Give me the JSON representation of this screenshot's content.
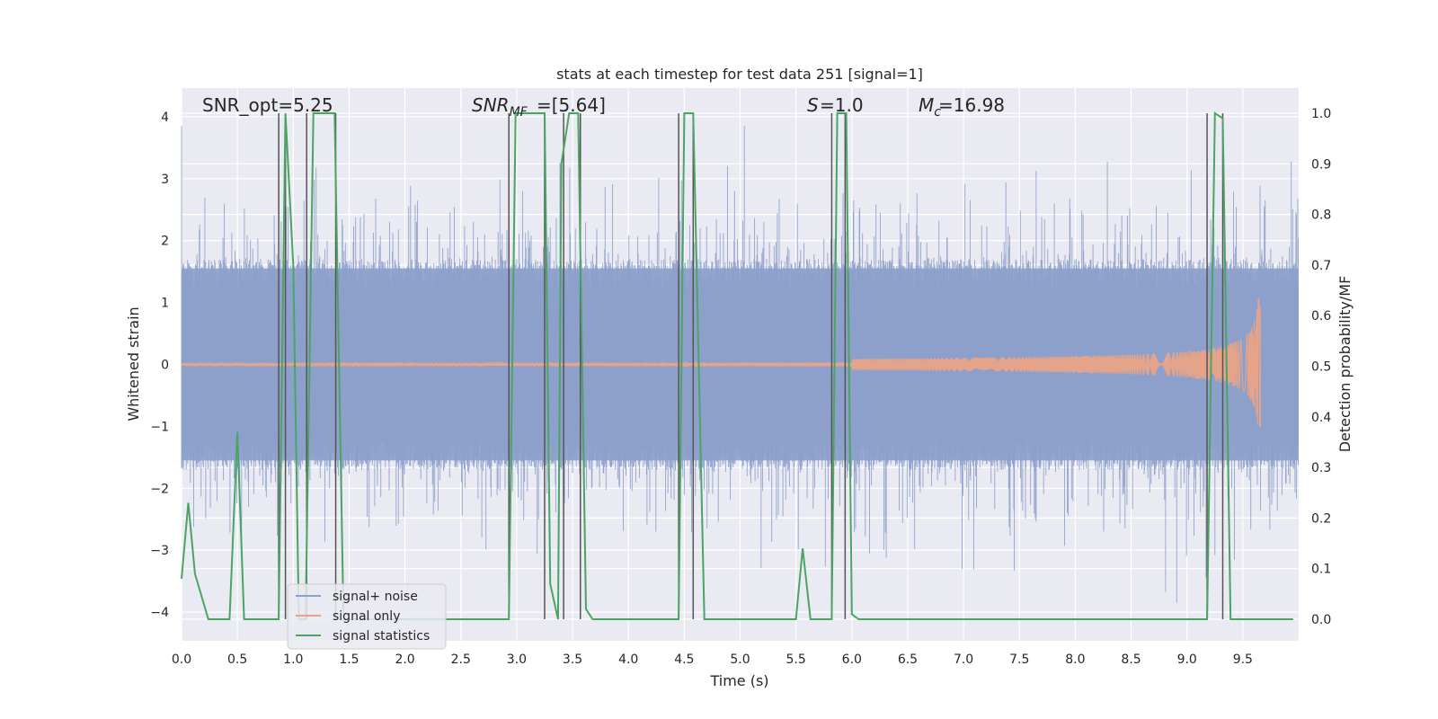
{
  "chart_data": {
    "type": "line",
    "title": "stats at each timestep for test data 251 [signal=1]",
    "xlabel": "Time (s)",
    "ylabel_left": "Whitened strain",
    "ylabel_right": "Detection probability/MF",
    "xlim": [
      0.0,
      10.0
    ],
    "ylim_left": [
      -4.4,
      4.4
    ],
    "ylim_right": [
      -0.05,
      1.03
    ],
    "x_ticks": [
      "0.0",
      "0.5",
      "1.0",
      "1.5",
      "2.0",
      "2.5",
      "3.0",
      "3.5",
      "4.0",
      "4.5",
      "5.0",
      "5.5",
      "6.0",
      "6.5",
      "7.0",
      "7.5",
      "8.0",
      "8.5",
      "9.0",
      "9.5"
    ],
    "y_left_ticks": [
      "−4",
      "−3",
      "−2",
      "−1",
      "0",
      "1",
      "2",
      "3",
      "4"
    ],
    "y_right_ticks": [
      "0.0",
      "0.1",
      "0.2",
      "0.3",
      "0.4",
      "0.5",
      "0.6",
      "0.7",
      "0.8",
      "0.9",
      "1.0"
    ],
    "annotations": {
      "snr_opt": "SNR_opt=5.25",
      "snr_mf": "=[5.64]",
      "s_value": "=1.0",
      "mc_value": "=16.98"
    },
    "legend": [
      "signal+ noise",
      "signal only",
      "signal statistics"
    ],
    "legend_position": "lower-left",
    "grid": true,
    "colors": {
      "noise": "#8da0cb",
      "signal": "#e5a48a",
      "stats": "#4aa564",
      "vlines": "#555555",
      "background": "#eaeaf2"
    },
    "series": [
      {
        "name": "signal statistics",
        "axis": "right",
        "x": [
          0.0,
          0.06,
          0.12,
          0.24,
          0.43,
          0.5,
          0.56,
          0.87,
          0.93,
          1.0,
          1.05,
          1.11,
          1.18,
          1.37,
          1.45,
          1.55,
          2.93,
          2.99,
          3.25,
          3.3,
          3.37,
          3.4,
          3.47,
          3.55,
          3.62,
          3.68,
          4.45,
          4.5,
          4.58,
          4.68,
          5.5,
          5.56,
          5.63,
          5.82,
          5.87,
          5.95,
          6.0,
          6.06,
          7.0,
          8.0,
          8.4,
          8.5,
          9.0,
          9.18,
          9.25,
          9.32,
          9.39,
          9.95
        ],
        "values": [
          0.08,
          0.23,
          0.09,
          0.0,
          0.0,
          0.37,
          0.0,
          0.0,
          1.0,
          0.7,
          0.0,
          0.0,
          1.0,
          1.0,
          0.0,
          0.0,
          0.0,
          1.0,
          1.0,
          0.07,
          0.0,
          0.9,
          1.0,
          1.0,
          0.02,
          0.0,
          0.0,
          1.0,
          1.0,
          0.0,
          0.0,
          0.14,
          0.0,
          0.0,
          1.0,
          1.0,
          0.01,
          0.0,
          0.0,
          0.0,
          0.0,
          0.0,
          0.0,
          0.0,
          1.0,
          0.99,
          0.0,
          0.0
        ]
      },
      {
        "name": "vertical markers",
        "axis": "right",
        "x": [
          0.87,
          0.93,
          1.12,
          1.38,
          2.93,
          3.25,
          3.42,
          3.57,
          4.45,
          4.58,
          5.82,
          5.94,
          9.18,
          9.32
        ]
      }
    ]
  }
}
